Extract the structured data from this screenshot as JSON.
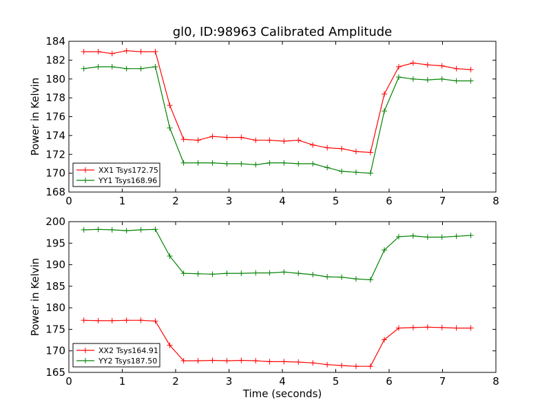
{
  "figure_title": "gl0, ID:98963 Calibrated Amplitude",
  "chart_data": [
    {
      "type": "line",
      "title": "gl0, ID:98963 Calibrated Amplitude",
      "xlabel": "",
      "ylabel": "Power in Kelvin",
      "xlim": [
        0,
        8
      ],
      "ylim": [
        168,
        184
      ],
      "xticks": [
        "0",
        "1",
        "2",
        "3",
        "4",
        "5",
        "6",
        "7",
        "8"
      ],
      "yticks": [
        "168",
        "170",
        "172",
        "174",
        "176",
        "178",
        "180",
        "182",
        "184"
      ],
      "legend_position": "lower-left",
      "grid": false,
      "x": [
        0.28,
        0.55,
        0.81,
        1.08,
        1.35,
        1.62,
        1.89,
        2.15,
        2.42,
        2.69,
        2.96,
        3.23,
        3.5,
        3.76,
        4.03,
        4.3,
        4.57,
        4.84,
        5.11,
        5.38,
        5.65,
        5.91,
        6.18,
        6.45,
        6.72,
        6.99,
        7.26,
        7.53
      ],
      "series": [
        {
          "name": "XX1 Tsys172.75",
          "color": "#ff0000",
          "values": [
            182.9,
            182.9,
            182.7,
            183.0,
            182.9,
            182.9,
            177.2,
            173.6,
            173.5,
            173.9,
            173.8,
            173.8,
            173.5,
            173.5,
            173.4,
            173.5,
            173.0,
            172.7,
            172.6,
            172.3,
            172.2,
            178.4,
            181.3,
            181.7,
            181.5,
            181.4,
            181.1,
            181.0
          ]
        },
        {
          "name": "YY1 Tsys168.96",
          "color": "#008000",
          "values": [
            181.1,
            181.3,
            181.3,
            181.1,
            181.1,
            181.3,
            174.8,
            171.1,
            171.1,
            171.1,
            171.0,
            171.0,
            170.9,
            171.1,
            171.1,
            171.0,
            171.0,
            170.6,
            170.2,
            170.1,
            170.0,
            176.6,
            180.2,
            180.0,
            179.9,
            180.0,
            179.8,
            179.8
          ]
        }
      ]
    },
    {
      "type": "line",
      "title": "",
      "xlabel": "Time (seconds)",
      "ylabel": "Power in Kelvin",
      "xlim": [
        0,
        8
      ],
      "ylim": [
        165,
        200
      ],
      "xticks": [
        "0",
        "1",
        "2",
        "3",
        "4",
        "5",
        "6",
        "7",
        "8"
      ],
      "yticks": [
        "165",
        "170",
        "175",
        "180",
        "185",
        "190",
        "195",
        "200"
      ],
      "legend_position": "lower-left",
      "grid": false,
      "x": [
        0.28,
        0.55,
        0.81,
        1.08,
        1.35,
        1.62,
        1.89,
        2.15,
        2.42,
        2.69,
        2.96,
        3.23,
        3.5,
        3.76,
        4.03,
        4.3,
        4.57,
        4.84,
        5.11,
        5.38,
        5.65,
        5.91,
        6.18,
        6.45,
        6.72,
        6.99,
        7.26,
        7.53
      ],
      "series": [
        {
          "name": "XX2 Tsys164.91",
          "color": "#ff0000",
          "values": [
            177.1,
            177.0,
            177.0,
            177.1,
            177.1,
            176.9,
            171.3,
            167.7,
            167.7,
            167.8,
            167.7,
            167.8,
            167.7,
            167.5,
            167.5,
            167.4,
            167.2,
            166.8,
            166.6,
            166.4,
            166.4,
            172.6,
            175.3,
            175.4,
            175.5,
            175.4,
            175.3,
            175.3
          ]
        },
        {
          "name": "YY2 Tsys187.50",
          "color": "#008000",
          "values": [
            198.1,
            198.2,
            198.1,
            197.9,
            198.1,
            198.2,
            192.0,
            188.0,
            187.9,
            187.8,
            188.0,
            188.0,
            188.1,
            188.1,
            188.3,
            188.0,
            187.7,
            187.2,
            187.1,
            186.7,
            186.5,
            193.4,
            196.5,
            196.7,
            196.4,
            196.4,
            196.6,
            196.8
          ]
        }
      ]
    }
  ]
}
